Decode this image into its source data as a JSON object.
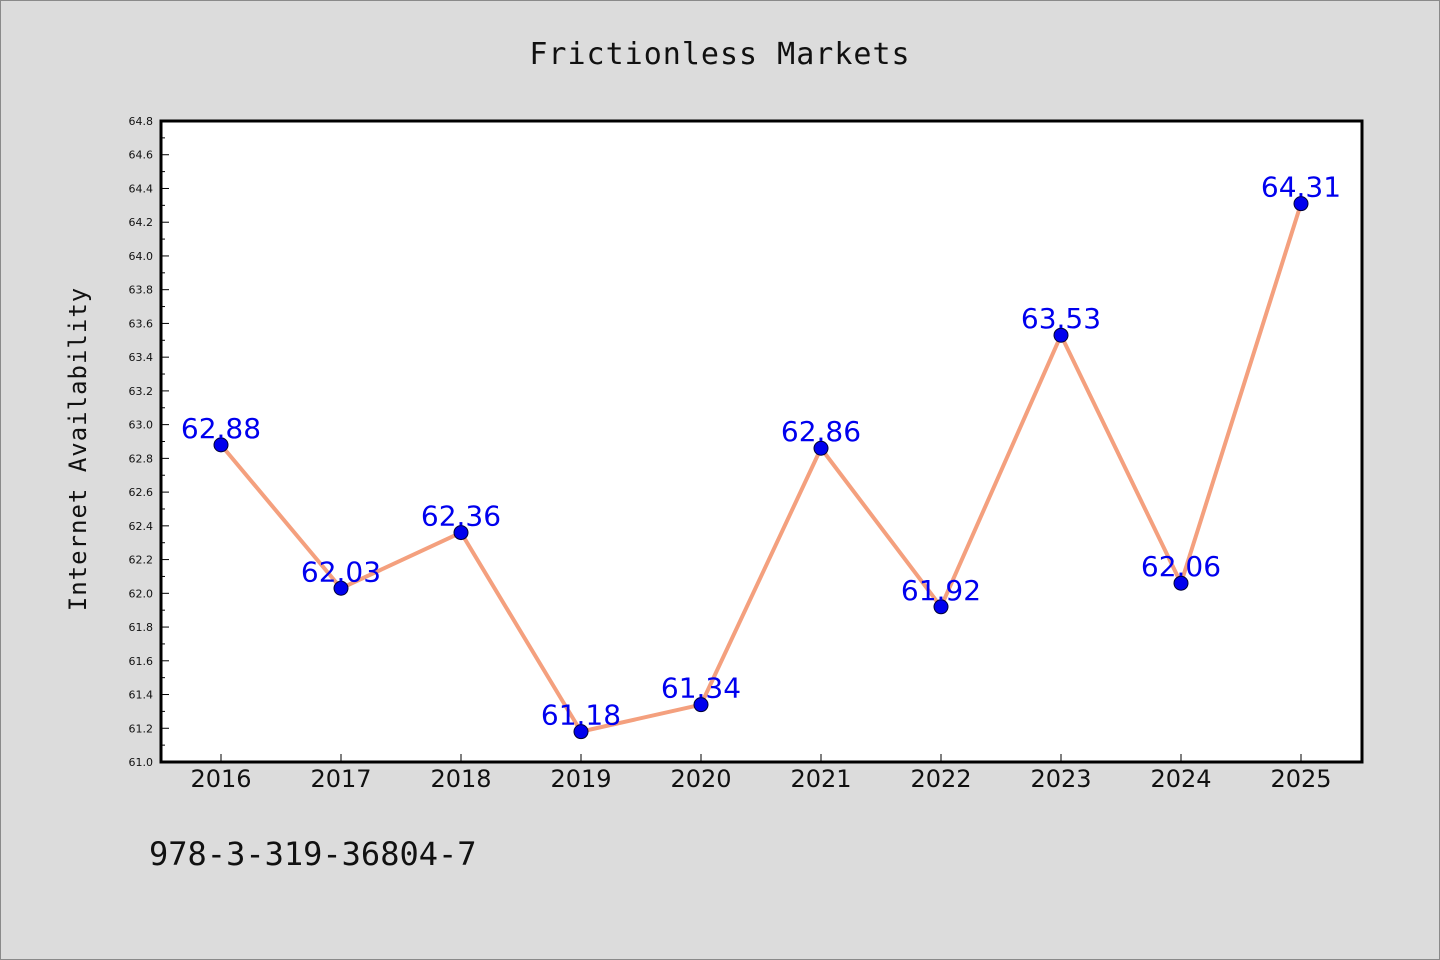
{
  "chart_data": {
    "type": "line",
    "title": "Frictionless Markets",
    "xlabel": "",
    "ylabel": "Internet Availability",
    "categories": [
      "2016",
      "2017",
      "2018",
      "2019",
      "2020",
      "2021",
      "2022",
      "2023",
      "2024",
      "2025"
    ],
    "series": [
      {
        "values": [
          62.88,
          62.03,
          62.36,
          61.18,
          61.34,
          62.86,
          61.92,
          63.53,
          62.06,
          64.31
        ],
        "data_labels": [
          "62.88",
          "62.03",
          "62.36",
          "61.18",
          "61.34",
          "62.86",
          "61.92",
          "63.53",
          "62.06",
          "64.31"
        ]
      }
    ],
    "ylim": [
      61.0,
      64.8
    ],
    "yticks": [
      "61.0",
      "61.2",
      "61.4",
      "61.6",
      "61.8",
      "62.0",
      "62.2",
      "62.4",
      "62.6",
      "62.8",
      "63.0",
      "63.2",
      "63.4",
      "63.6",
      "63.8",
      "64.0",
      "64.2",
      "64.4",
      "64.6",
      "64.8"
    ],
    "grid": false,
    "legend": "none",
    "colors": {
      "line": "#f4a07e",
      "marker": "#0000ee",
      "data_label": "#0000ee",
      "background": "#dcdcdc",
      "plot_background": "#ffffff"
    }
  },
  "footer": {
    "isbn": "978-3-319-36804-7"
  }
}
